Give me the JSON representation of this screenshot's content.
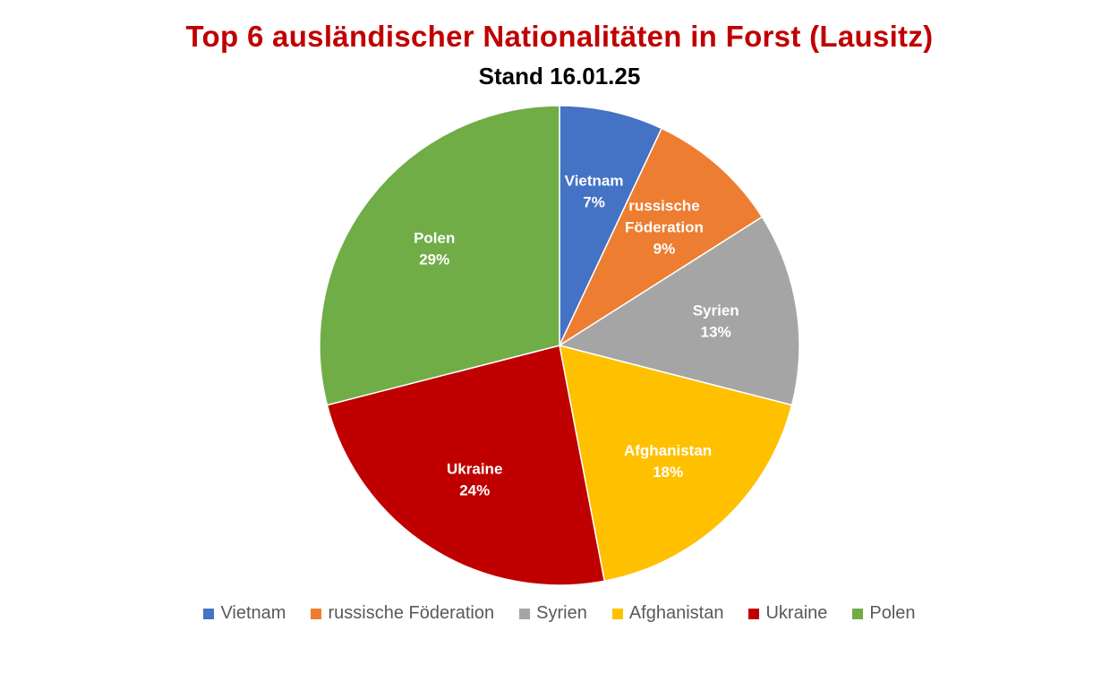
{
  "chart_data": {
    "type": "pie",
    "title": "Top 6 ausländischer Nationalitäten in Forst (Lausitz)",
    "subtitle": "Stand 16.01.25",
    "title_color": "#C00000",
    "legend_position": "bottom",
    "slices": [
      {
        "label": "Vietnam",
        "label_lines": [
          "Vietnam"
        ],
        "value": 7,
        "value_label": "7%",
        "color": "#4472C4"
      },
      {
        "label": "russische Föderation",
        "label_lines": [
          "russische",
          "Föderation"
        ],
        "value": 9,
        "value_label": "9%",
        "color": "#ED7D31"
      },
      {
        "label": "Syrien",
        "label_lines": [
          "Syrien"
        ],
        "value": 13,
        "value_label": "13%",
        "color": "#A5A5A5"
      },
      {
        "label": "Afghanistan",
        "label_lines": [
          "Afghanistan"
        ],
        "value": 18,
        "value_label": "18%",
        "color": "#FFC000"
      },
      {
        "label": "Ukraine",
        "label_lines": [
          "Ukraine"
        ],
        "value": 24,
        "value_label": "24%",
        "color": "#C00000"
      },
      {
        "label": "Polen",
        "label_lines": [
          "Polen"
        ],
        "value": 29,
        "value_label": "29%",
        "color": "#70AD47"
      }
    ]
  }
}
